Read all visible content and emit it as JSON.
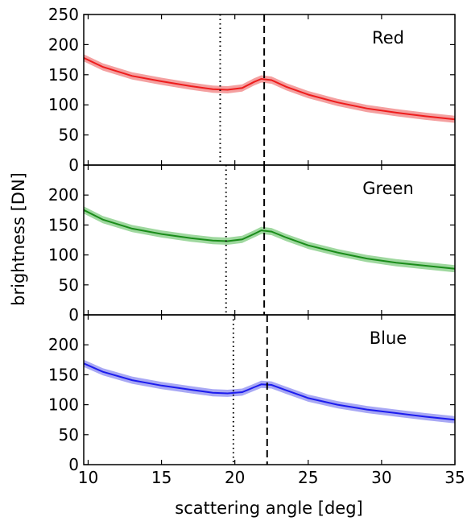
{
  "chart_data": [
    {
      "type": "line",
      "panel_label": "Red",
      "color": "#ee1c1c",
      "band_color": "#f4a0a0",
      "xlim": [
        9.7,
        35
      ],
      "ylim": [
        0,
        250
      ],
      "yticks": [
        0,
        50,
        100,
        150,
        200,
        250
      ],
      "xticks": [
        10,
        15,
        20,
        25,
        30,
        35
      ],
      "dotted_x": 19.0,
      "dashed_x": 22.0,
      "x": [
        9.7,
        11,
        13,
        15,
        17,
        18.5,
        19.5,
        20.5,
        21.3,
        21.8,
        22.5,
        23.5,
        25,
        27,
        29,
        31,
        33,
        35
      ],
      "y": [
        178,
        163,
        148,
        139,
        131,
        126,
        125,
        128,
        138,
        143,
        141,
        130,
        117,
        104,
        94,
        87,
        81,
        76
      ],
      "band": 6
    },
    {
      "type": "line",
      "panel_label": "Green",
      "color": "#1a8c1a",
      "band_color": "#9fd89f",
      "xlim": [
        9.7,
        35
      ],
      "ylim": [
        0,
        250
      ],
      "yticks": [
        0,
        50,
        100,
        150,
        200
      ],
      "xticks": [
        10,
        15,
        20,
        25,
        30,
        35
      ],
      "dotted_x": 19.4,
      "dashed_x": 22.0,
      "x": [
        9.7,
        11,
        13,
        15,
        17,
        18.5,
        19.5,
        20.5,
        21.3,
        21.8,
        22.5,
        23.5,
        25,
        27,
        29,
        31,
        33,
        35
      ],
      "y": [
        175,
        159,
        144,
        135,
        128,
        124,
        123,
        126,
        135,
        141,
        139,
        129,
        116,
        104,
        94,
        87,
        82,
        77
      ],
      "band": 6
    },
    {
      "type": "line",
      "panel_label": "Blue",
      "color": "#1c1cee",
      "band_color": "#a8a8f4",
      "xlim": [
        9.7,
        35
      ],
      "ylim": [
        0,
        250
      ],
      "yticks": [
        0,
        50,
        100,
        150,
        200
      ],
      "xticks": [
        10,
        15,
        20,
        25,
        30,
        35
      ],
      "dotted_x": 19.9,
      "dashed_x": 22.2,
      "x": [
        9.7,
        11,
        13,
        15,
        17,
        18.5,
        19.5,
        20.5,
        21.3,
        21.8,
        22.5,
        23.5,
        25,
        27,
        29,
        31,
        33,
        35
      ],
      "y": [
        169,
        155,
        141,
        132,
        125,
        120,
        119,
        121,
        129,
        134,
        133,
        124,
        111,
        100,
        92,
        86,
        80,
        75
      ],
      "band": 6
    }
  ],
  "axes": {
    "xlabel": "scattering angle [deg]",
    "ylabel": "brightness [DN]"
  }
}
